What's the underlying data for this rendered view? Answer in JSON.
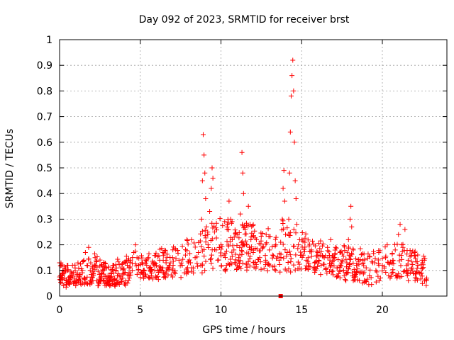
{
  "chart_data": {
    "type": "scatter",
    "title": "Day 092 of 2023, SRMTID for receiver brst",
    "xlabel": "GPS time / hours",
    "ylabel": "SRMTID / TECUs",
    "xlim": [
      0,
      24
    ],
    "ylim": [
      0,
      1
    ],
    "xticks": [
      0,
      5,
      10,
      15,
      20
    ],
    "xtick_labels": [
      "0",
      "5",
      "10",
      "15",
      "20"
    ],
    "yticks": [
      0,
      0.1,
      0.2,
      0.3,
      0.4,
      0.5,
      0.6,
      0.7,
      0.8,
      0.9,
      1
    ],
    "ytick_labels": [
      "0",
      "0.1",
      "0.2",
      "0.3",
      "0.4",
      "0.5",
      "0.6",
      "0.7",
      "0.8",
      "0.9",
      "1"
    ],
    "grid": true,
    "marker": "+",
    "color": "#ff0000",
    "series": [
      {
        "name": "SRMTID",
        "points": [
          [
            0.0,
            0.13
          ],
          [
            0.05,
            0.08
          ],
          [
            0.1,
            0.12
          ],
          [
            0.15,
            0.05
          ],
          [
            0.2,
            0.09
          ],
          [
            0.25,
            0.04
          ],
          [
            0.3,
            0.07
          ],
          [
            0.4,
            0.06
          ],
          [
            0.5,
            0.1
          ],
          [
            0.6,
            0.05
          ],
          [
            0.7,
            0.08
          ],
          [
            0.8,
            0.12
          ],
          [
            0.9,
            0.07
          ],
          [
            1.0,
            0.04
          ],
          [
            1.1,
            0.09
          ],
          [
            1.2,
            0.06
          ],
          [
            1.3,
            0.05
          ],
          [
            1.4,
            0.1
          ],
          [
            1.5,
            0.14
          ],
          [
            1.6,
            0.17
          ],
          [
            1.7,
            0.12
          ],
          [
            1.8,
            0.19
          ],
          [
            1.9,
            0.1
          ],
          [
            2.0,
            0.05
          ],
          [
            2.1,
            0.08
          ],
          [
            2.2,
            0.15
          ],
          [
            2.3,
            0.06
          ],
          [
            2.4,
            0.04
          ],
          [
            2.5,
            0.07
          ],
          [
            2.6,
            0.09
          ],
          [
            2.7,
            0.06
          ],
          [
            2.8,
            0.05
          ],
          [
            2.9,
            0.11
          ],
          [
            3.0,
            0.08
          ],
          [
            3.1,
            0.06
          ],
          [
            3.2,
            0.09
          ],
          [
            3.3,
            0.12
          ],
          [
            3.4,
            0.07
          ],
          [
            3.5,
            0.1
          ],
          [
            3.6,
            0.05
          ],
          [
            3.7,
            0.08
          ],
          [
            3.8,
            0.11
          ],
          [
            3.9,
            0.07
          ],
          [
            4.0,
            0.09
          ],
          [
            4.1,
            0.06
          ],
          [
            4.2,
            0.12
          ],
          [
            4.3,
            0.08
          ],
          [
            4.4,
            0.14
          ],
          [
            4.5,
            0.1
          ],
          [
            4.6,
            0.17
          ],
          [
            4.7,
            0.2
          ],
          [
            4.8,
            0.15
          ],
          [
            4.9,
            0.12
          ],
          [
            5.0,
            0.09
          ],
          [
            5.1,
            0.13
          ],
          [
            5.2,
            0.1
          ],
          [
            5.3,
            0.08
          ],
          [
            5.4,
            0.12
          ],
          [
            5.5,
            0.15
          ],
          [
            5.6,
            0.11
          ],
          [
            5.7,
            0.09
          ],
          [
            5.8,
            0.13
          ],
          [
            5.9,
            0.1
          ],
          [
            6.0,
            0.12
          ],
          [
            6.2,
            0.14
          ],
          [
            6.4,
            0.11
          ],
          [
            6.6,
            0.13
          ],
          [
            6.8,
            0.12
          ],
          [
            7.0,
            0.15
          ],
          [
            7.2,
            0.18
          ],
          [
            7.4,
            0.14
          ],
          [
            7.6,
            0.12
          ],
          [
            7.8,
            0.16
          ],
          [
            8.0,
            0.13
          ],
          [
            8.2,
            0.11
          ],
          [
            8.4,
            0.15
          ],
          [
            8.6,
            0.17
          ],
          [
            8.75,
            0.12
          ],
          [
            8.8,
            0.3
          ],
          [
            8.85,
            0.45
          ],
          [
            8.9,
            0.63
          ],
          [
            8.95,
            0.55
          ],
          [
            9.0,
            0.48
          ],
          [
            9.05,
            0.38
          ],
          [
            9.1,
            0.27
          ],
          [
            9.2,
            0.2
          ],
          [
            9.3,
            0.33
          ],
          [
            9.4,
            0.42
          ],
          [
            9.45,
            0.5
          ],
          [
            9.5,
            0.46
          ],
          [
            9.6,
            0.25
          ],
          [
            9.7,
            0.18
          ],
          [
            9.8,
            0.14
          ],
          [
            10.0,
            0.2
          ],
          [
            10.2,
            0.16
          ],
          [
            10.4,
            0.28
          ],
          [
            10.5,
            0.37
          ],
          [
            10.6,
            0.3
          ],
          [
            10.7,
            0.22
          ],
          [
            10.8,
            0.18
          ],
          [
            11.0,
            0.24
          ],
          [
            11.1,
            0.15
          ],
          [
            11.2,
            0.32
          ],
          [
            11.3,
            0.56
          ],
          [
            11.35,
            0.48
          ],
          [
            11.4,
            0.4
          ],
          [
            11.5,
            0.26
          ],
          [
            11.6,
            0.2
          ],
          [
            11.7,
            0.35
          ],
          [
            11.8,
            0.28
          ],
          [
            12.0,
            0.17
          ],
          [
            12.2,
            0.22
          ],
          [
            12.4,
            0.15
          ],
          [
            12.6,
            0.19
          ],
          [
            12.8,
            0.24
          ],
          [
            13.0,
            0.18
          ],
          [
            13.2,
            0.16
          ],
          [
            13.4,
            0.2
          ],
          [
            13.6,
            0.14
          ],
          [
            13.7,
            0.21
          ],
          [
            13.8,
            0.3
          ],
          [
            13.85,
            0.42
          ],
          [
            13.9,
            0.49
          ],
          [
            13.95,
            0.37
          ],
          [
            14.0,
            0.24
          ],
          [
            14.1,
            0.17
          ],
          [
            14.2,
            0.3
          ],
          [
            14.25,
            0.48
          ],
          [
            14.3,
            0.64
          ],
          [
            14.35,
            0.78
          ],
          [
            14.4,
            0.86
          ],
          [
            14.45,
            0.92
          ],
          [
            14.5,
            0.8
          ],
          [
            14.55,
            0.6
          ],
          [
            14.6,
            0.45
          ],
          [
            14.65,
            0.38
          ],
          [
            14.7,
            0.28
          ],
          [
            14.8,
            0.2
          ],
          [
            15.0,
            0.16
          ],
          [
            15.2,
            0.21
          ],
          [
            15.4,
            0.15
          ],
          [
            15.6,
            0.18
          ],
          [
            15.8,
            0.13
          ],
          [
            16.0,
            0.17
          ],
          [
            16.2,
            0.12
          ],
          [
            16.4,
            0.15
          ],
          [
            16.6,
            0.19
          ],
          [
            16.8,
            0.22
          ],
          [
            17.0,
            0.14
          ],
          [
            17.2,
            0.11
          ],
          [
            17.4,
            0.17
          ],
          [
            17.6,
            0.1
          ],
          [
            17.8,
            0.13
          ],
          [
            17.9,
            0.22
          ],
          [
            18.0,
            0.3
          ],
          [
            18.05,
            0.35
          ],
          [
            18.1,
            0.27
          ],
          [
            18.2,
            0.18
          ],
          [
            18.4,
            0.12
          ],
          [
            18.6,
            0.09
          ],
          [
            18.8,
            0.14
          ],
          [
            19.0,
            0.11
          ],
          [
            19.2,
            0.08
          ],
          [
            19.4,
            0.13
          ],
          [
            19.6,
            0.1
          ],
          [
            19.8,
            0.06
          ],
          [
            20.0,
            0.12
          ],
          [
            20.2,
            0.15
          ],
          [
            20.3,
            0.2
          ],
          [
            20.4,
            0.13
          ],
          [
            20.6,
            0.09
          ],
          [
            20.8,
            0.18
          ],
          [
            21.0,
            0.24
          ],
          [
            21.1,
            0.28
          ],
          [
            21.2,
            0.2
          ],
          [
            21.4,
            0.26
          ],
          [
            21.6,
            0.14
          ],
          [
            21.8,
            0.11
          ],
          [
            22.0,
            0.17
          ],
          [
            22.2,
            0.12
          ],
          [
            22.4,
            0.09
          ],
          [
            22.6,
            0.14
          ],
          [
            22.75,
            0.07
          ]
        ]
      }
    ],
    "band": [
      [
        0,
        0.04,
        0.13
      ],
      [
        1,
        0.04,
        0.12
      ],
      [
        2,
        0.05,
        0.17
      ],
      [
        3,
        0.04,
        0.13
      ],
      [
        4,
        0.05,
        0.15
      ],
      [
        5,
        0.07,
        0.18
      ],
      [
        6,
        0.07,
        0.18
      ],
      [
        7,
        0.08,
        0.2
      ],
      [
        8,
        0.08,
        0.22
      ],
      [
        9,
        0.1,
        0.28
      ],
      [
        10,
        0.1,
        0.3
      ],
      [
        11,
        0.11,
        0.3
      ],
      [
        12,
        0.1,
        0.28
      ],
      [
        13,
        0.1,
        0.26
      ],
      [
        14,
        0.1,
        0.3
      ],
      [
        15,
        0.1,
        0.25
      ],
      [
        16,
        0.09,
        0.22
      ],
      [
        17,
        0.08,
        0.2
      ],
      [
        18,
        0.06,
        0.2
      ],
      [
        19,
        0.05,
        0.17
      ],
      [
        20,
        0.06,
        0.2
      ],
      [
        21,
        0.07,
        0.22
      ],
      [
        22,
        0.06,
        0.18
      ],
      [
        22.75,
        0.05,
        0.16
      ]
    ],
    "outlier": [
      13.7,
      0.0
    ]
  }
}
